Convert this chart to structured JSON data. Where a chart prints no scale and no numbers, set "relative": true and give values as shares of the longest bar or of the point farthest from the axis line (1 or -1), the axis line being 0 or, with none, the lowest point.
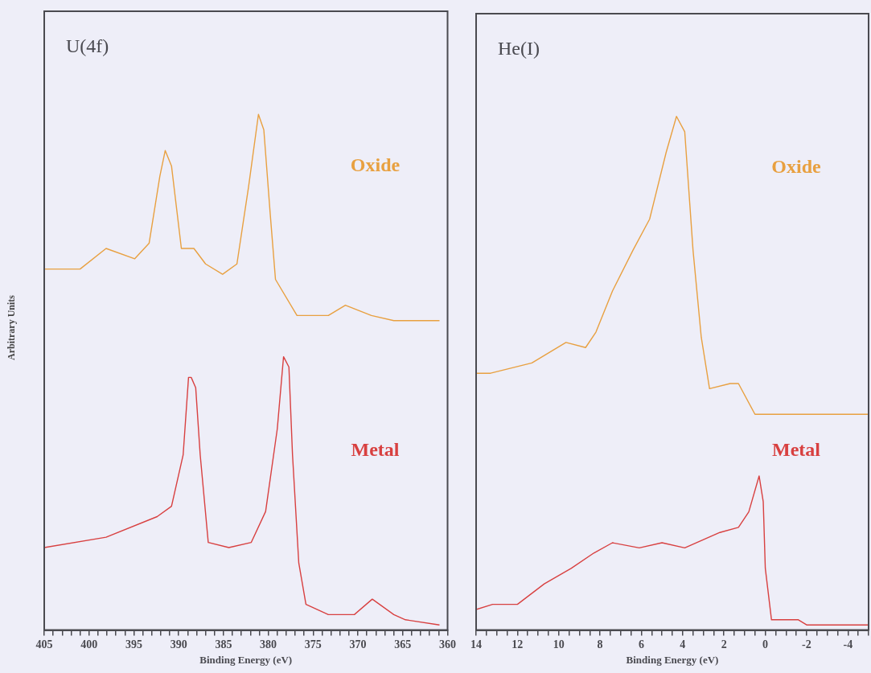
{
  "chart_data": [
    {
      "type": "line",
      "title": "U(4f)",
      "xlabel": "Binding Energy (eV)",
      "ylabel": "Arbitrary Units",
      "relative": true,
      "xlim": [
        405,
        360
      ],
      "xticks": [
        405,
        {
          "value": 404,
          "label": null
        },
        {
          "value": 403,
          "label": null
        },
        {
          "value": 402,
          "label": null
        },
        {
          "value": 401,
          "label": null
        },
        400,
        {
          "value": 399,
          "label": null
        },
        {
          "value": 398,
          "label": null
        },
        {
          "value": 397,
          "label": null
        },
        {
          "value": 396,
          "label": null
        },
        395,
        {
          "value": 394,
          "label": null
        },
        {
          "value": 393,
          "label": null
        },
        {
          "value": 392,
          "label": null
        },
        {
          "value": 391,
          "label": null
        },
        390,
        {
          "value": 389,
          "label": null
        },
        {
          "value": 388,
          "label": null
        },
        {
          "value": 387,
          "label": null
        },
        {
          "value": 386,
          "label": null
        },
        385,
        {
          "value": 384,
          "label": null
        },
        {
          "value": 383,
          "label": null
        },
        {
          "value": 382,
          "label": null
        },
        {
          "value": 381,
          "label": null
        },
        380,
        {
          "value": 379,
          "label": null
        },
        {
          "value": 378,
          "label": null
        },
        {
          "value": 377,
          "label": null
        },
        {
          "value": 376,
          "label": null
        },
        375,
        {
          "value": 374,
          "label": null
        },
        {
          "value": 373,
          "label": null
        },
        {
          "value": 372,
          "label": null
        },
        {
          "value": 371,
          "label": null
        },
        370,
        {
          "value": 369,
          "label": null
        },
        {
          "value": 368,
          "label": null
        },
        {
          "value": 367,
          "label": null
        },
        {
          "value": 366,
          "label": null
        },
        365,
        {
          "value": 364,
          "label": null
        },
        {
          "value": 363,
          "label": null
        },
        {
          "value": 362,
          "label": null
        },
        {
          "value": 361,
          "label": null
        },
        360
      ],
      "series": [
        {
          "name": "Oxide",
          "color": "#e8a040",
          "x": [
            405,
            401,
            398.1,
            394.9,
            393.3,
            392.1,
            391.5,
            390.8,
            389.7,
            388.3,
            387,
            385.1,
            383.5,
            382.2,
            381.1,
            380.5,
            379.8,
            379.2,
            376.8,
            373.3,
            371.4,
            368.5,
            366,
            360.9
          ],
          "values": [
            0.7,
            0.7,
            0.74,
            0.72,
            0.75,
            0.88,
            0.93,
            0.9,
            0.74,
            0.74,
            0.71,
            0.69,
            0.71,
            0.86,
            1,
            0.97,
            0.81,
            0.68,
            0.61,
            0.61,
            0.63,
            0.61,
            0.6,
            0.6
          ]
        },
        {
          "name": "Metal",
          "color": "#d84040",
          "x": [
            405,
            398.1,
            392.4,
            390.8,
            389.5,
            388.9,
            388.6,
            388.1,
            387.6,
            386.7,
            384.4,
            381.9,
            380.3,
            379,
            378.3,
            377.7,
            377.3,
            376.6,
            375.8,
            373.3,
            370.4,
            368.4,
            366,
            364.7,
            360.9
          ],
          "values": [
            0.16,
            0.18,
            0.22,
            0.24,
            0.34,
            0.49,
            0.49,
            0.47,
            0.34,
            0.17,
            0.16,
            0.17,
            0.23,
            0.39,
            0.53,
            0.51,
            0.34,
            0.13,
            0.05,
            0.03,
            0.03,
            0.06,
            0.03,
            0.02,
            0.01
          ]
        }
      ]
    },
    {
      "type": "line",
      "title": "He(I)",
      "xlabel": "Binding Energy (eV)",
      "relative": true,
      "xlim": [
        14,
        -5
      ],
      "xticks": [
        14,
        {
          "value": 13.5,
          "label": null
        },
        {
          "value": 13,
          "label": null
        },
        {
          "value": 12.5,
          "label": null
        },
        12,
        {
          "value": 11.5,
          "label": null
        },
        {
          "value": 11,
          "label": null
        },
        {
          "value": 10.5,
          "label": null
        },
        10,
        {
          "value": 9.5,
          "label": null
        },
        {
          "value": 9,
          "label": null
        },
        {
          "value": 8.5,
          "label": null
        },
        8,
        {
          "value": 7.5,
          "label": null
        },
        {
          "value": 7,
          "label": null
        },
        {
          "value": 6.5,
          "label": null
        },
        6,
        {
          "value": 5.5,
          "label": null
        },
        {
          "value": 5,
          "label": null
        },
        {
          "value": 4.5,
          "label": null
        },
        4,
        {
          "value": 3.5,
          "label": null
        },
        {
          "value": 3,
          "label": null
        },
        {
          "value": 2.5,
          "label": null
        },
        2,
        {
          "value": 1.5,
          "label": null
        },
        {
          "value": 1,
          "label": null
        },
        {
          "value": 0.5,
          "label": null
        },
        0,
        {
          "value": -0.5,
          "label": null
        },
        {
          "value": -1,
          "label": null
        },
        {
          "value": -1.5,
          "label": null
        },
        -2,
        {
          "value": -2.5,
          "label": null
        },
        {
          "value": -3,
          "label": null
        },
        {
          "value": -3.5,
          "label": null
        },
        -4,
        {
          "value": -4.5,
          "label": null
        },
        {
          "value": -5,
          "label": null
        }
      ],
      "series": [
        {
          "name": "Oxide",
          "color": "#e8a040",
          "x": [
            14,
            13.3,
            11.3,
            9.65,
            8.7,
            8.2,
            7.4,
            6.4,
            5.6,
            4.8,
            4.3,
            3.9,
            3.5,
            3.1,
            2.7,
            1.7,
            1.3,
            0.5,
            -5
          ],
          "values": [
            0.5,
            0.5,
            0.52,
            0.56,
            0.55,
            0.58,
            0.66,
            0.74,
            0.8,
            0.93,
            1,
            0.97,
            0.74,
            0.57,
            0.47,
            0.48,
            0.48,
            0.42,
            0.42
          ]
        },
        {
          "name": "Metal",
          "color": "#d84040",
          "x": [
            14,
            13.2,
            12,
            10.7,
            9.4,
            8.3,
            7.4,
            6.1,
            5,
            3.9,
            2.2,
            1.3,
            0.8,
            0.3,
            0.1,
            0,
            -0.3,
            -1.1,
            -1.6,
            -2,
            -5
          ],
          "values": [
            0.04,
            0.05,
            0.05,
            0.09,
            0.12,
            0.15,
            0.17,
            0.16,
            0.17,
            0.16,
            0.19,
            0.2,
            0.23,
            0.3,
            0.25,
            0.12,
            0.02,
            0.02,
            0.02,
            0.01,
            0.01
          ]
        }
      ]
    }
  ]
}
